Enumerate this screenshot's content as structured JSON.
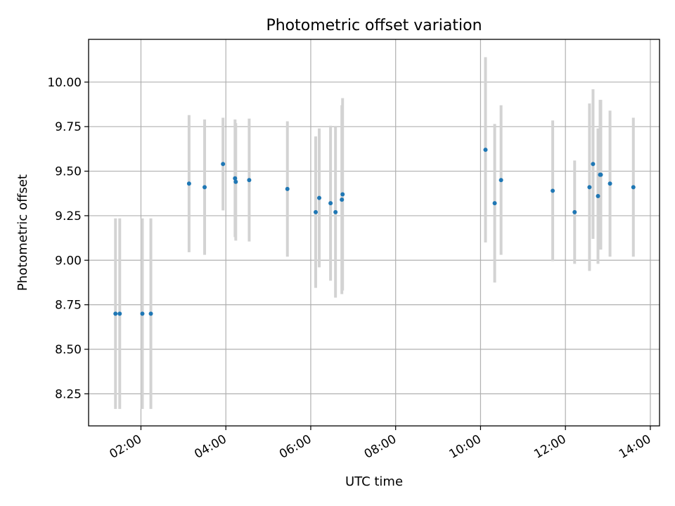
{
  "chart_data": {
    "type": "scatter",
    "title": "Photometric offset variation",
    "xlabel": "UTC time",
    "ylabel": "Photometric offset",
    "x_tick_labels": [
      "02:00",
      "04:00",
      "06:00",
      "08:00",
      "10:00",
      "12:00",
      "14:00"
    ],
    "y_tick_labels": [
      "8.25",
      "8.50",
      "8.75",
      "9.00",
      "9.25",
      "9.50",
      "9.75",
      "10.00"
    ],
    "x_tick_values": [
      "02:00",
      "04:00",
      "06:00",
      "08:00",
      "10:00",
      "12:00",
      "14:00"
    ],
    "y_tick_values": [
      8.25,
      8.5,
      8.75,
      9.0,
      9.25,
      9.5,
      9.75,
      10.0
    ],
    "xlim": [
      "00:46",
      "14:13"
    ],
    "ylim": [
      8.07,
      10.24
    ],
    "grid": true,
    "marker_color": "#1f77b4",
    "errorbar_color": "#d3d3d3",
    "points": [
      {
        "x": "01:24",
        "y": 8.7,
        "err": 0.535
      },
      {
        "x": "01:30",
        "y": 8.7,
        "err": 0.535
      },
      {
        "x": "02:02",
        "y": 8.7,
        "err": 0.535
      },
      {
        "x": "02:14",
        "y": 8.7,
        "err": 0.535
      },
      {
        "x": "03:08",
        "y": 9.43,
        "err": 0.385
      },
      {
        "x": "03:30",
        "y": 9.41,
        "err": 0.38
      },
      {
        "x": "03:56",
        "y": 9.54,
        "err": 0.26
      },
      {
        "x": "04:13",
        "y": 9.46,
        "err": 0.33
      },
      {
        "x": "04:14",
        "y": 9.44,
        "err": 0.33
      },
      {
        "x": "04:33",
        "y": 9.45,
        "err": 0.345
      },
      {
        "x": "05:27",
        "y": 9.4,
        "err": 0.38
      },
      {
        "x": "06:07",
        "y": 9.27,
        "err": 0.425
      },
      {
        "x": "06:12",
        "y": 9.35,
        "err": 0.39
      },
      {
        "x": "06:28",
        "y": 9.32,
        "err": 0.435
      },
      {
        "x": "06:35",
        "y": 9.27,
        "err": 0.48
      },
      {
        "x": "06:44",
        "y": 9.34,
        "err": 0.53
      },
      {
        "x": "06:45",
        "y": 9.37,
        "err": 0.54
      },
      {
        "x": "10:07",
        "y": 9.62,
        "err": 0.52
      },
      {
        "x": "10:20",
        "y": 9.32,
        "err": 0.445
      },
      {
        "x": "10:29",
        "y": 9.45,
        "err": 0.42
      },
      {
        "x": "11:42",
        "y": 9.39,
        "err": 0.395
      },
      {
        "x": "12:13",
        "y": 9.27,
        "err": 0.29
      },
      {
        "x": "12:34",
        "y": 9.41,
        "err": 0.47
      },
      {
        "x": "12:39",
        "y": 9.54,
        "err": 0.42
      },
      {
        "x": "12:46",
        "y": 9.36,
        "err": 0.38
      },
      {
        "x": "12:49",
        "y": 9.48,
        "err": 0.42
      },
      {
        "x": "12:50",
        "y": 9.48,
        "err": 0.42
      },
      {
        "x": "13:03",
        "y": 9.43,
        "err": 0.41
      },
      {
        "x": "13:36",
        "y": 9.41,
        "err": 0.39
      }
    ]
  }
}
